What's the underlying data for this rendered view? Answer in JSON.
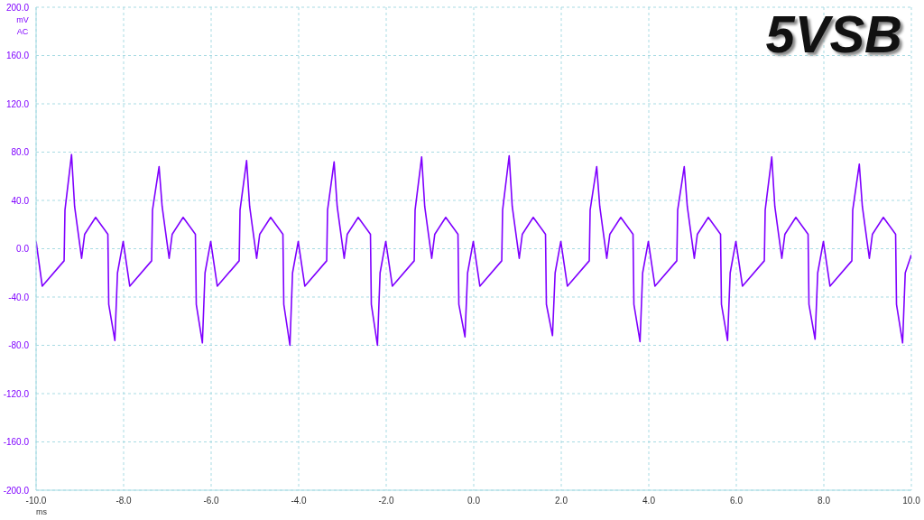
{
  "chart_data": {
    "type": "line",
    "title": "5VSB",
    "xlabel": "ms",
    "ylabel": "mV AC",
    "series": [
      {
        "color": "#7f00ff",
        "x": [
          -10,
          -9.86,
          -9.36,
          -9.34,
          -9.19,
          -9.12,
          -8.96,
          -8.89,
          -8.64,
          -8.36,
          -8.34,
          -8.2,
          -8.14,
          -8.01,
          -7.86,
          -7.36,
          -7.34,
          -7.19,
          -7.12,
          -6.96,
          -6.89,
          -6.64,
          -6.36,
          -6.34,
          -6.2,
          -6.14,
          -6.01,
          -5.86,
          -5.36,
          -5.34,
          -5.19,
          -5.12,
          -4.96,
          -4.89,
          -4.64,
          -4.36,
          -4.34,
          -4.2,
          -4.14,
          -4.01,
          -3.86,
          -3.36,
          -3.34,
          -3.19,
          -3.12,
          -2.96,
          -2.89,
          -2.64,
          -2.36,
          -2.34,
          -2.2,
          -2.14,
          -2.01,
          -1.86,
          -1.36,
          -1.34,
          -1.19,
          -1.12,
          -0.96,
          -0.89,
          -0.64,
          -0.36,
          -0.34,
          -0.2,
          -0.14,
          -0.01,
          0.14,
          0.64,
          0.66,
          0.81,
          0.88,
          1.04,
          1.11,
          1.36,
          1.64,
          1.66,
          1.8,
          1.86,
          1.99,
          2.14,
          2.64,
          2.66,
          2.81,
          2.88,
          3.04,
          3.11,
          3.36,
          3.64,
          3.66,
          3.8,
          3.86,
          3.99,
          4.14,
          4.64,
          4.66,
          4.81,
          4.88,
          5.04,
          5.11,
          5.36,
          5.64,
          5.66,
          5.8,
          5.86,
          5.99,
          6.14,
          6.64,
          6.66,
          6.81,
          6.88,
          7.04,
          7.11,
          7.36,
          7.64,
          7.66,
          7.8,
          7.86,
          7.99,
          8.14,
          8.64,
          8.66,
          8.81,
          8.88,
          9.04,
          9.11,
          9.36,
          9.64,
          9.66,
          9.8,
          9.86,
          10
        ],
        "values": [
          6,
          -31,
          -10,
          32,
          78,
          35,
          -8,
          12,
          26,
          12,
          -46,
          -76,
          -20,
          6,
          -31,
          -10,
          32,
          68,
          35,
          -8,
          12,
          26,
          12,
          -46,
          -78,
          -20,
          6,
          -31,
          -10,
          32,
          73,
          35,
          -8,
          12,
          26,
          12,
          -46,
          -80,
          -20,
          6,
          -31,
          -10,
          32,
          72,
          35,
          -8,
          12,
          26,
          12,
          -46,
          -80,
          -20,
          6,
          -31,
          -10,
          32,
          76,
          35,
          -8,
          12,
          26,
          12,
          -46,
          -73,
          -20,
          6,
          -31,
          -10,
          32,
          77,
          35,
          -8,
          12,
          26,
          12,
          -46,
          -72,
          -20,
          6,
          -31,
          -10,
          32,
          68,
          35,
          -8,
          12,
          26,
          12,
          -46,
          -77,
          -20,
          6,
          -31,
          -10,
          32,
          68,
          35,
          -8,
          12,
          26,
          12,
          -46,
          -76,
          -20,
          6,
          -31,
          -10,
          32,
          76,
          35,
          -8,
          12,
          26,
          12,
          -46,
          -75,
          -20,
          6,
          -31,
          -10,
          32,
          70,
          35,
          -8,
          12,
          26,
          12,
          -46,
          -78,
          -20,
          -5
        ]
      }
    ],
    "xlim": [
      -10,
      10
    ],
    "xticks": [
      {
        "value": -10,
        "label": "-10.0"
      },
      {
        "value": -8,
        "label": "-8.0"
      },
      {
        "value": -6,
        "label": "-6.0"
      },
      {
        "value": -4,
        "label": "-4.0"
      },
      {
        "value": -2,
        "label": "-2.0"
      },
      {
        "value": 0,
        "label": "0.0"
      },
      {
        "value": 2,
        "label": "2.0"
      },
      {
        "value": 4,
        "label": "4.0"
      },
      {
        "value": 6,
        "label": "6.0"
      },
      {
        "value": 8,
        "label": "8.0"
      },
      {
        "value": 10,
        "label": "10.0"
      }
    ],
    "ylim": [
      -200,
      200
    ],
    "yticks": [
      {
        "value": -200,
        "label": "-200.0"
      },
      {
        "value": -160,
        "label": "-160.0"
      },
      {
        "value": -120,
        "label": "-120.0"
      },
      {
        "value": -80,
        "label": "-80.0"
      },
      {
        "value": -40,
        "label": "-40.0"
      },
      {
        "value": 0,
        "label": "0.0"
      },
      {
        "value": 40,
        "label": "40.0"
      },
      {
        "value": 80,
        "label": "80.0"
      },
      {
        "value": 120,
        "label": "120.0"
      },
      {
        "value": 160,
        "label": "160.0"
      },
      {
        "value": 200,
        "label": "200.0"
      }
    ],
    "grid": true,
    "legend": false,
    "marker": "none",
    "line_style": "solid"
  }
}
